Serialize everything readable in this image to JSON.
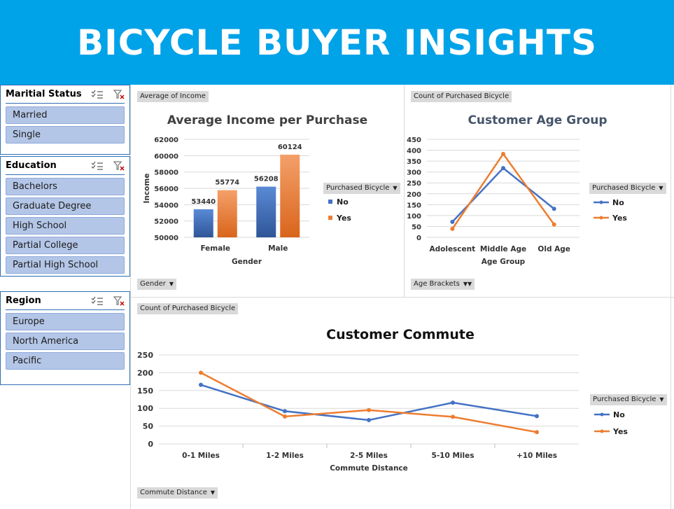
{
  "banner": {
    "title": "BICYCLE BUYER INSIGHTS"
  },
  "colors": {
    "banner": "#00a2e8",
    "no": "#4472c4",
    "yes": "#ed7d31",
    "slicer_item": "#b4c6e7"
  },
  "slicers": {
    "marital": {
      "title": "Maritial Status",
      "items": [
        "Married",
        "Single"
      ]
    },
    "education": {
      "title": "Education",
      "items": [
        "Bachelors",
        "Graduate Degree",
        "High School",
        "Partial College",
        "Partial High School"
      ]
    },
    "region": {
      "title": "Region",
      "items": [
        "Europe",
        "North America",
        "Pacific"
      ]
    },
    "icons": [
      "multi-select-icon",
      "clear-filter-icon"
    ]
  },
  "income_chart": {
    "value_button": "Average of Income",
    "axis_button": "Gender",
    "legend_button": "Purchased Bicycle"
  },
  "age_chart": {
    "value_button": "Count of Purchased Bicycle",
    "axis_button": "Age Brackets",
    "legend_button": "Purchased Bicycle"
  },
  "commute_chart": {
    "value_button": "Count of Purchased Bicycle",
    "axis_button": "Commute Distance",
    "legend_button": "Purchased Bicycle"
  },
  "chart_data": [
    {
      "type": "bar",
      "title": "Average Income per Purchase",
      "xlabel": "Gender",
      "ylabel": "Income",
      "categories": [
        "Female",
        "Male"
      ],
      "series": [
        {
          "name": "No",
          "values": [
            53440,
            56208
          ]
        },
        {
          "name": "Yes",
          "values": [
            55774,
            60124
          ]
        }
      ],
      "ylim": [
        50000,
        62000
      ],
      "yticks": [
        "50000",
        "52000",
        "54000",
        "56000",
        "58000",
        "60000",
        "62000"
      ],
      "data_labels": true,
      "legend_position": "right",
      "grid": true
    },
    {
      "type": "line",
      "title": "Customer Age Group",
      "xlabel": "Age Group",
      "ylabel": "",
      "categories": [
        "Adolescent",
        "Middle Age",
        "Old Age"
      ],
      "series": [
        {
          "name": "No",
          "values": [
            71,
            318,
            131
          ]
        },
        {
          "name": "Yes",
          "values": [
            39,
            383,
            59
          ]
        }
      ],
      "ylim": [
        0,
        450
      ],
      "yticks": [
        "0",
        "50",
        "100",
        "150",
        "200",
        "250",
        "300",
        "350",
        "400",
        "450"
      ],
      "legend_position": "right",
      "grid": true
    },
    {
      "type": "line",
      "title": "Customer Commute",
      "xlabel": "Commute Distance",
      "ylabel": "",
      "categories": [
        "0-1 Miles",
        "1-2 Miles",
        "2-5 Miles",
        "5-10 Miles",
        "+10 Miles"
      ],
      "series": [
        {
          "name": "No",
          "values": [
            166,
            92,
            67,
            116,
            78
          ]
        },
        {
          "name": "Yes",
          "values": [
            200,
            77,
            95,
            76,
            33
          ]
        }
      ],
      "ylim": [
        0,
        250
      ],
      "yticks": [
        "0",
        "50",
        "100",
        "150",
        "200",
        "250"
      ],
      "legend_position": "right",
      "grid": true
    }
  ]
}
